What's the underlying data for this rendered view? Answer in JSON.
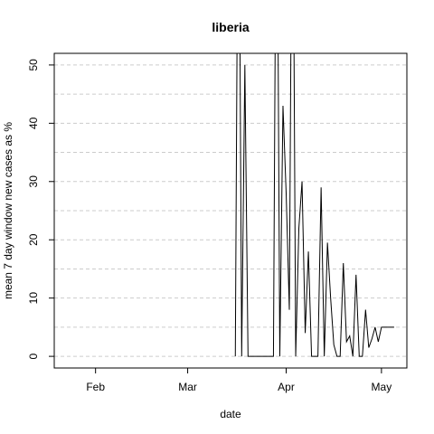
{
  "chart_data": {
    "type": "line",
    "title": "liberia",
    "xlabel": "date",
    "ylabel": "mean  7  day window new cases as %",
    "x_ticks": [
      {
        "label": "Feb",
        "date": "2020-02-01"
      },
      {
        "label": "Mar",
        "date": "2020-03-01"
      },
      {
        "label": "Apr",
        "date": "2020-04-01"
      },
      {
        "label": "May",
        "date": "2020-05-01"
      }
    ],
    "y_ticks": [
      0,
      10,
      20,
      30,
      40,
      50
    ],
    "xlim": [
      "2020-01-19",
      "2020-05-09"
    ],
    "ylim": [
      -2,
      52
    ],
    "grid": {
      "horizontal": true,
      "style": "dashed"
    },
    "series": [
      {
        "color": "#000000",
        "x": [
          "2020-03-16",
          "2020-03-17",
          "2020-03-18",
          "2020-03-19",
          "2020-03-20",
          "2020-03-21",
          "2020-03-22",
          "2020-03-23",
          "2020-03-24",
          "2020-03-25",
          "2020-03-26",
          "2020-03-27",
          "2020-03-28",
          "2020-03-29",
          "2020-03-30",
          "2020-03-31",
          "2020-04-01",
          "2020-04-02",
          "2020-04-03",
          "2020-04-04",
          "2020-04-05",
          "2020-04-06",
          "2020-04-07",
          "2020-04-08",
          "2020-04-09",
          "2020-04-10",
          "2020-04-11",
          "2020-04-12",
          "2020-04-13",
          "2020-04-14",
          "2020-04-15",
          "2020-04-16",
          "2020-04-17",
          "2020-04-18",
          "2020-04-19",
          "2020-04-20",
          "2020-04-21",
          "2020-04-22",
          "2020-04-23",
          "2020-04-24",
          "2020-04-25",
          "2020-04-26",
          "2020-04-27",
          "2020-04-28",
          "2020-04-29",
          "2020-04-30",
          "2020-05-01",
          "2020-05-02",
          "2020-05-03",
          "2020-05-04",
          "2020-05-05"
        ],
        "y": [
          0,
          100,
          0,
          50,
          0,
          0,
          0,
          0,
          0,
          0,
          0,
          0,
          0,
          100,
          0,
          43,
          28,
          8,
          100,
          0,
          22,
          30,
          4,
          18,
          0,
          0,
          0,
          29,
          0,
          19.5,
          10,
          2,
          0,
          0,
          16,
          2.5,
          3.5,
          0,
          14,
          0,
          0,
          8,
          1.5,
          3,
          5,
          2.5,
          5,
          5,
          5,
          5,
          5
        ]
      }
    ]
  }
}
